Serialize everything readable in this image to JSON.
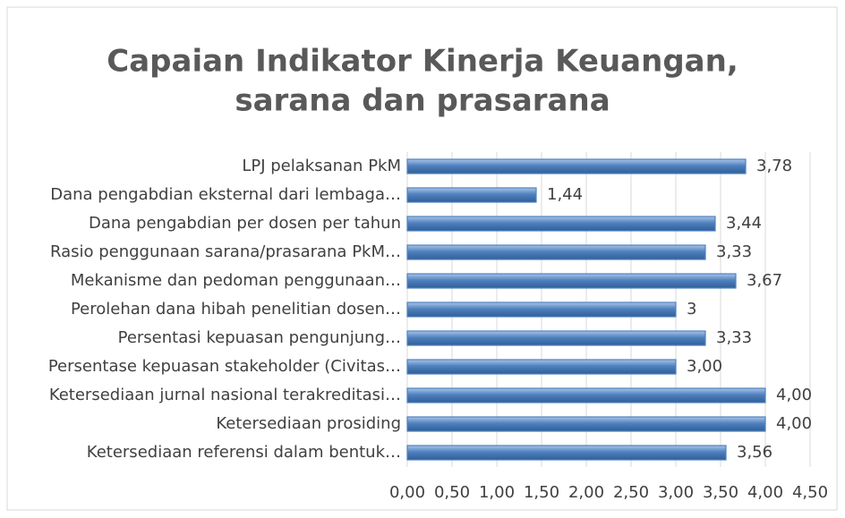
{
  "chart_data": {
    "type": "bar",
    "orientation": "horizontal",
    "title": "Capaian Indikator Kinerja Keuangan,",
    "subtitle": "sarana dan prasarana",
    "categories": [
      "LPJ pelaksanan PkM",
      "Dana pengabdian eksternal dari lembaga…",
      "Dana pengabdian per dosen per tahun",
      "Rasio penggunaan sarana/prasarana PkM…",
      "Mekanisme dan pedoman penggunaan…",
      "Perolehan dana hibah penelitian dosen…",
      "Persentasi kepuasan pengunjung…",
      "Persentase kepuasan stakeholder (Civitas…",
      "Ketersediaan jurnal nasional terakreditasi…",
      "Ketersediaan prosiding",
      "Ketersediaan referensi dalam bentuk…"
    ],
    "values": [
      3.78,
      1.44,
      3.44,
      3.33,
      3.67,
      3,
      3.33,
      3.0,
      4.0,
      4.0,
      3.56
    ],
    "value_labels": [
      "3,78",
      "1,44",
      "3,44",
      "3,33",
      "3,67",
      "3",
      "3,33",
      "3,00",
      "4,00",
      "4,00",
      "3,56"
    ],
    "color": "#4f81bd",
    "xlim": [
      0,
      4.5
    ],
    "xticks": [
      {
        "value": 0,
        "label": "0,00"
      },
      {
        "value": 0.5,
        "label": "0,50"
      },
      {
        "value": 1,
        "label": "1,00"
      },
      {
        "value": 1.5,
        "label": "1,50"
      },
      {
        "value": 2,
        "label": "2,00"
      },
      {
        "value": 2.5,
        "label": "2,50"
      },
      {
        "value": 3,
        "label": "3,00"
      },
      {
        "value": 3.5,
        "label": "3,50"
      },
      {
        "value": 4,
        "label": "4,00"
      },
      {
        "value": 4.5,
        "label": "4,50"
      }
    ],
    "grid": true
  }
}
